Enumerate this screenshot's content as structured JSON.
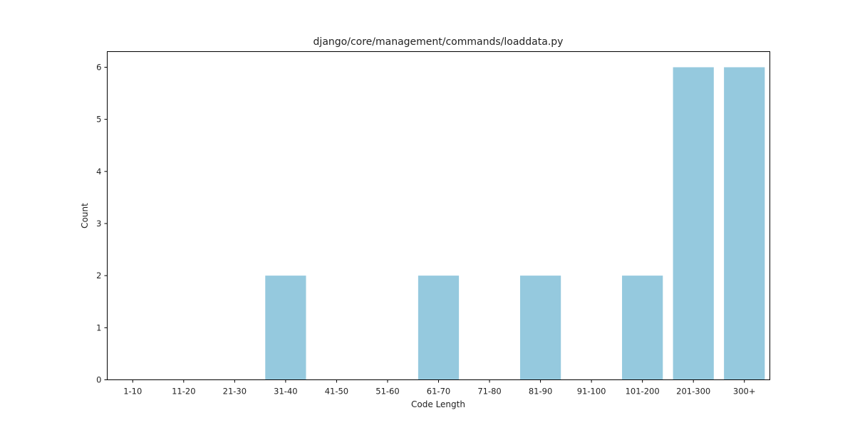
{
  "chart_data": {
    "type": "bar",
    "title": "django/core/management/commands/loaddata.py",
    "xlabel": "Code Length",
    "ylabel": "Count",
    "categories": [
      "1-10",
      "11-20",
      "21-30",
      "31-40",
      "41-50",
      "51-60",
      "61-70",
      "71-80",
      "81-90",
      "91-100",
      "101-200",
      "201-300",
      "300+"
    ],
    "values": [
      0,
      0,
      0,
      2,
      0,
      0,
      2,
      0,
      2,
      0,
      2,
      6,
      6
    ],
    "ylim": [
      0,
      6.3
    ],
    "yticks": [
      0,
      1,
      2,
      3,
      4,
      5,
      6
    ],
    "bar_color": "#95c9de",
    "grid": false,
    "legend": "none"
  }
}
